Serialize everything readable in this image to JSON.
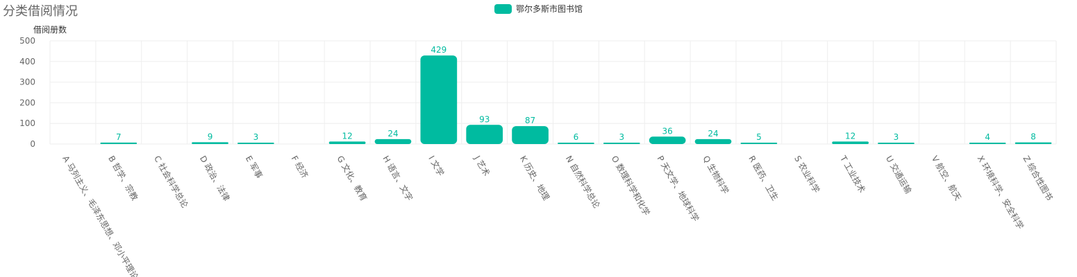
{
  "page": {
    "title": "分类借阅情况"
  },
  "colors": {
    "bar": "#00BBA0",
    "grid": "#eeeeee",
    "axis_text": "#666666"
  },
  "chart_data": {
    "type": "bar",
    "title": "分类借阅情况",
    "ylabel": "借阅册数",
    "ylim": [
      0,
      500
    ],
    "yticks": [
      0,
      100,
      200,
      300,
      400,
      500
    ],
    "legend": {
      "placement": "top-center"
    },
    "categories": [
      "A 马列主义、毛泽东思想、邓小平理论",
      "B 哲学、宗教",
      "C 社会科学总论",
      "D 政治、法律",
      "E 军事",
      "F 经济",
      "G 文化、教育",
      "H 语言、文字",
      "I 文学",
      "J 艺术",
      "K 历史、地理",
      "N 自然科学总论",
      "O 数理科学和化学",
      "P 天文学、地球科学",
      "Q 生物科学",
      "R 医药、卫生",
      "S 农业科学",
      "T 工业技术",
      "U 交通运输",
      "V 航空、航天",
      "X 环境科学、安全科学",
      "Z 综合性图书"
    ],
    "series": [
      {
        "name": "鄂尔多斯市图书馆",
        "values": [
          0,
          7,
          0,
          9,
          3,
          0,
          12,
          24,
          429,
          93,
          87,
          6,
          3,
          36,
          24,
          5,
          0,
          12,
          3,
          0,
          4,
          8
        ]
      }
    ]
  }
}
